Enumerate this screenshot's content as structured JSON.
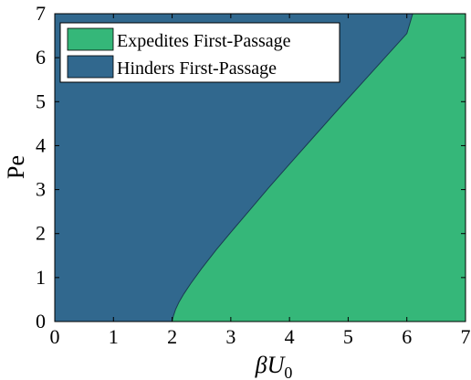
{
  "chart_data": {
    "type": "area",
    "title": "",
    "xlabel_main": "βU",
    "xlabel_sub": "0",
    "ylabel": "Pe",
    "xlim": [
      0,
      7
    ],
    "ylim": [
      0,
      7
    ],
    "x_ticks": [
      "0",
      "1",
      "2",
      "3",
      "4",
      "5",
      "6",
      "7"
    ],
    "y_ticks": [
      "0",
      "1",
      "2",
      "3",
      "4",
      "5",
      "6",
      "7"
    ],
    "grid": false,
    "legend_position": "top-left",
    "series": [
      {
        "name": "Expedites First-Passage",
        "color": "#35b779",
        "region": "right of boundary"
      },
      {
        "name": "Hinders First-Passage",
        "color": "#31688e",
        "region": "left of boundary"
      }
    ],
    "boundary": {
      "x": [
        2.0,
        2.02,
        2.06,
        2.12,
        2.2,
        2.32,
        2.5,
        2.75,
        3.0,
        3.3,
        3.65,
        4.0,
        4.4,
        4.8,
        5.2,
        5.6,
        6.0,
        6.1
      ],
      "y": [
        0.0,
        0.12,
        0.28,
        0.45,
        0.63,
        0.87,
        1.2,
        1.63,
        2.03,
        2.5,
        3.05,
        3.58,
        4.18,
        4.78,
        5.37,
        5.96,
        6.55,
        7.0
      ]
    }
  }
}
